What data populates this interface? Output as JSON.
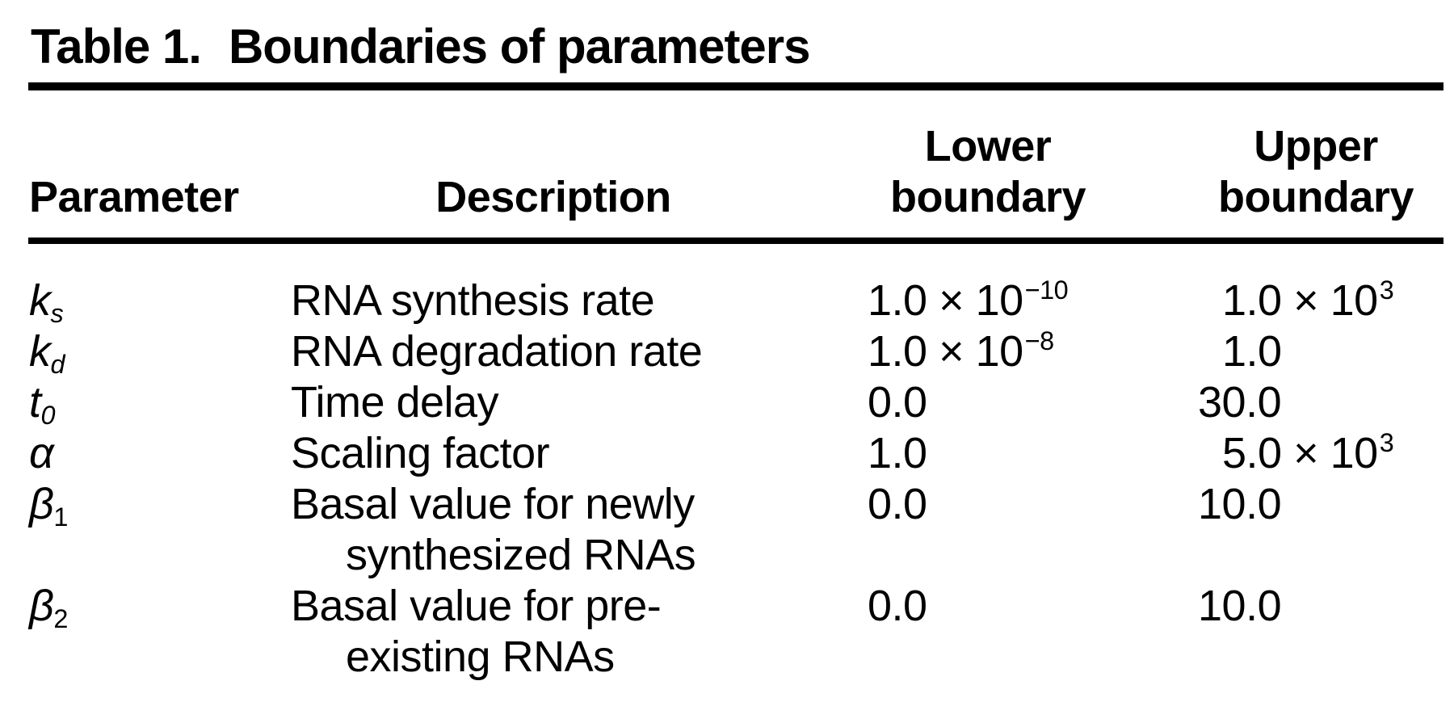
{
  "colors": {
    "background": "#ffffff",
    "text": "#000000"
  },
  "title": {
    "label": "Table 1.",
    "caption": "Boundaries of parameters"
  },
  "table": {
    "headers": {
      "parameter": "Parameter",
      "description": "Description",
      "lower_line1": "Lower",
      "lower_line2": "boundary",
      "upper_line1": "Upper",
      "upper_line2": "boundary"
    },
    "rows": [
      {
        "param": "k",
        "sub": "s",
        "desc1": "RNA synthesis rate",
        "desc2": "",
        "lower": "1.0 × 10",
        "lower_exp": "−10",
        "upper": "1.0 × 10",
        "upper_exp": "3"
      },
      {
        "param": "k",
        "sub": "d",
        "desc1": "RNA degradation rate",
        "desc2": "",
        "lower": "1.0 × 10",
        "lower_exp": "−8",
        "upper": "1.0",
        "upper_exp": ""
      },
      {
        "param": "t",
        "sub": "0",
        "desc1": "Time delay",
        "desc2": "",
        "lower": "0.0",
        "lower_exp": "",
        "upper": "30.0",
        "upper_exp": ""
      },
      {
        "param": "α",
        "sub": "",
        "desc1": "Scaling factor",
        "desc2": "",
        "lower": "1.0",
        "lower_exp": "",
        "upper": "5.0 × 10",
        "upper_exp": "3"
      },
      {
        "param": "β",
        "sub": "1",
        "desc1": "Basal value for newly",
        "desc2": "synthesized RNAs",
        "lower": "0.0",
        "lower_exp": "",
        "upper": "10.0",
        "upper_exp": ""
      },
      {
        "param": "β",
        "sub": "2",
        "desc1": "Basal value for pre-",
        "desc2": "existing RNAs",
        "lower": "0.0",
        "lower_exp": "",
        "upper": "10.0",
        "upper_exp": ""
      }
    ]
  }
}
